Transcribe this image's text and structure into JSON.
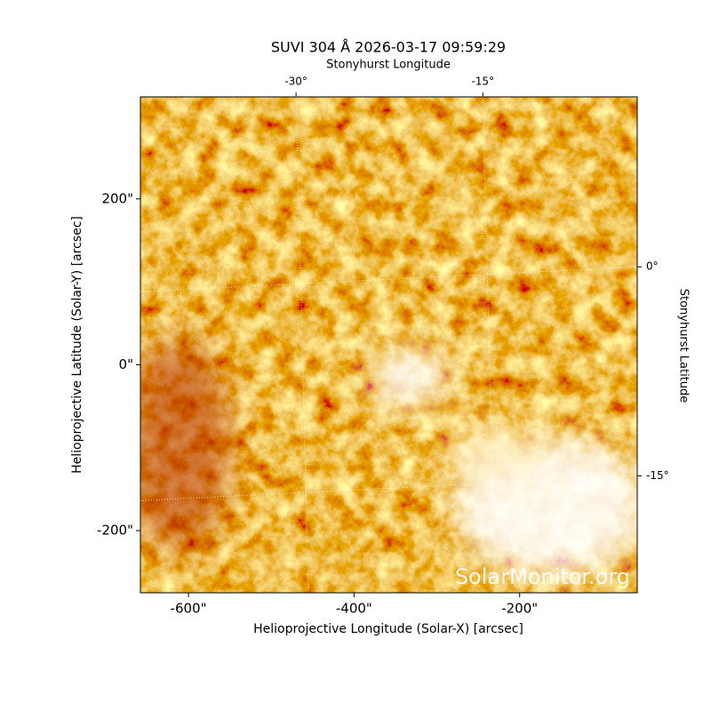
{
  "chart_data": {
    "type": "image",
    "title": "SUVI 304 Å 2026-03-17 09:59:29",
    "xlabel": "Helioprojective Longitude (Solar-X) [arcsec]",
    "ylabel": "Helioprojective Latitude (Solar-Y) [arcsec]",
    "x2label": "Stonyhurst Longitude",
    "y2label": "Stonyhurst Latitude",
    "watermark": "SolarMonitor.org",
    "xlim": [
      -658,
      -58
    ],
    "ylim": [
      -275,
      323
    ],
    "xticks": [
      {
        "value": -600,
        "label": "-600\""
      },
      {
        "value": -400,
        "label": "-400\""
      },
      {
        "value": -200,
        "label": "-200\""
      }
    ],
    "yticks": [
      {
        "value": -200,
        "label": "-200\""
      },
      {
        "value": 0,
        "label": "0\""
      },
      {
        "value": 200,
        "label": "200\""
      }
    ],
    "x2lim": [
      -42.5,
      -2.6
    ],
    "x2ticks": [
      {
        "value": -30,
        "label": "-30°"
      },
      {
        "value": -15,
        "label": "-15°"
      }
    ],
    "y2lim": [
      -23.4,
      12.2
    ],
    "y2ticks": [
      {
        "value": -15,
        "label": "-15°"
      },
      {
        "value": 0,
        "label": "0°"
      }
    ]
  }
}
